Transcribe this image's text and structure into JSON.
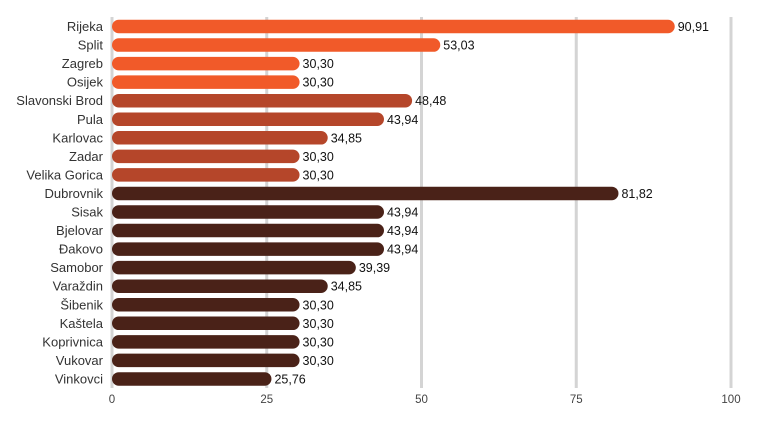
{
  "chart_data": {
    "type": "bar",
    "orientation": "horizontal",
    "xlim": [
      0,
      100
    ],
    "xticks": [
      "0",
      "25",
      "50",
      "75",
      "100"
    ],
    "grid": true,
    "legend": "none",
    "categories": [
      "Rijeka",
      "Split",
      "Zagreb",
      "Osijek",
      "Slavonski Brod",
      "Pula",
      "Karlovac",
      "Zadar",
      "Velika Gorica",
      "Dubrovnik",
      "Sisak",
      "Bjelovar",
      "Đakovo",
      "Samobor",
      "Varaždin",
      "Šibenik",
      "Kaštela",
      "Koprivnica",
      "Vukovar",
      "Vinkovci"
    ],
    "values": [
      90.91,
      53.03,
      30.3,
      30.3,
      48.48,
      43.94,
      34.85,
      30.3,
      30.3,
      81.82,
      43.94,
      43.94,
      43.94,
      39.39,
      34.85,
      30.3,
      30.3,
      30.3,
      30.3,
      25.76
    ],
    "value_labels": [
      "90,91",
      "53,03",
      "30,30",
      "30,30",
      "48,48",
      "43,94",
      "34,85",
      "30,30",
      "30,30",
      "81,82",
      "43,94",
      "43,94",
      "43,94",
      "39,39",
      "34,85",
      "30,30",
      "30,30",
      "30,30",
      "30,30",
      "25,76"
    ],
    "groups": [
      0,
      0,
      0,
      0,
      1,
      1,
      1,
      1,
      1,
      2,
      2,
      2,
      2,
      2,
      2,
      2,
      2,
      2,
      2,
      2
    ],
    "colors": [
      "#f15a29",
      "#b5462a",
      "#4a2218"
    ]
  }
}
